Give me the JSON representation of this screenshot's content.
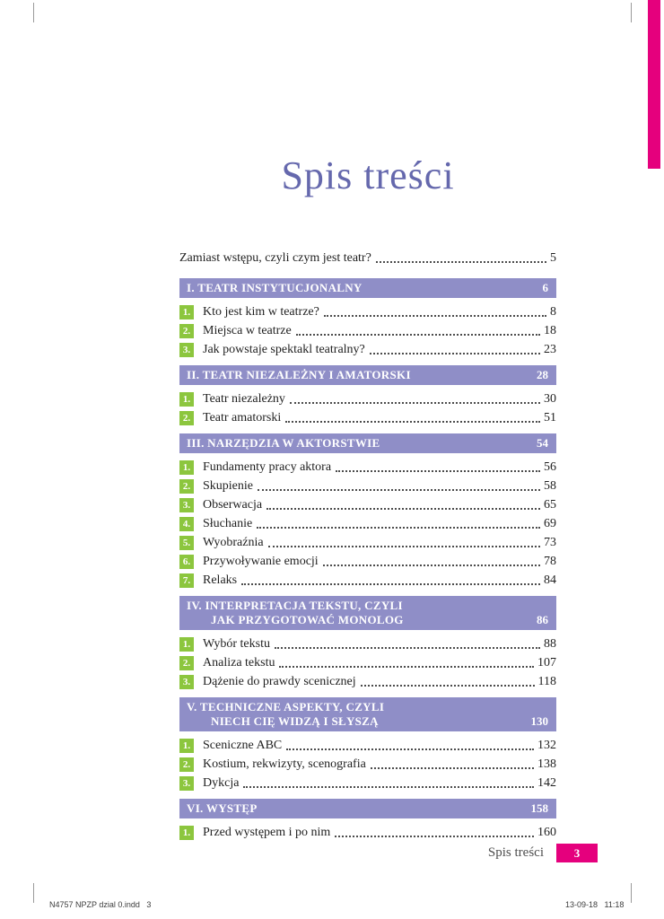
{
  "title": "Spis treści",
  "intro": {
    "label": "Zamiast wstępu, czyli czym jest teatr?",
    "page": "5"
  },
  "sections": [
    {
      "heading": [
        "I. TEATR INSTYTUCJONALNY"
      ],
      "page": "6",
      "items": [
        {
          "num": "1.",
          "label": "Kto jest kim w teatrze?",
          "page": "8"
        },
        {
          "num": "2.",
          "label": "Miejsca w teatrze",
          "page": "18"
        },
        {
          "num": "3.",
          "label": "Jak powstaje spektakl teatralny?",
          "page": "23"
        }
      ]
    },
    {
      "heading": [
        "II. TEATR NIEZALEŻNY I AMATORSKI"
      ],
      "page": "28",
      "items": [
        {
          "num": "1.",
          "label": "Teatr niezależny",
          "page": "30"
        },
        {
          "num": "2.",
          "label": "Teatr amatorski",
          "page": "51"
        }
      ]
    },
    {
      "heading": [
        "III. NARZĘDZIA W AKTORSTWIE"
      ],
      "page": "54",
      "items": [
        {
          "num": "1.",
          "label": "Fundamenty pracy aktora",
          "page": "56"
        },
        {
          "num": "2.",
          "label": "Skupienie",
          "page": "58"
        },
        {
          "num": "3.",
          "label": "Obserwacja",
          "page": "65"
        },
        {
          "num": "4.",
          "label": "Słuchanie",
          "page": "69"
        },
        {
          "num": "5.",
          "label": "Wyobraźnia",
          "page": "73"
        },
        {
          "num": "6.",
          "label": "Przywoływanie emocji",
          "page": "78"
        },
        {
          "num": "7.",
          "label": "Relaks",
          "page": "84"
        }
      ]
    },
    {
      "heading": [
        "IV. INTERPRETACJA TEKSTU, CZYLI",
        "JAK PRZYGOTOWAĆ MONOLOG"
      ],
      "page": "86",
      "items": [
        {
          "num": "1.",
          "label": "Wybór tekstu",
          "page": "88"
        },
        {
          "num": "2.",
          "label": "Analiza tekstu",
          "page": "107"
        },
        {
          "num": "3.",
          "label": "Dążenie do prawdy scenicznej",
          "page": "118"
        }
      ]
    },
    {
      "heading": [
        "V. TECHNICZNE ASPEKTY, CZYLI",
        "NIECH CIĘ WIDZĄ I SŁYSZĄ"
      ],
      "page": "130",
      "items": [
        {
          "num": "1.",
          "label": "Sceniczne ABC",
          "page": "132"
        },
        {
          "num": "2.",
          "label": "Kostium, rekwizyty, scenografia",
          "page": "138"
        },
        {
          "num": "3.",
          "label": "Dykcja",
          "page": "142"
        }
      ]
    },
    {
      "heading": [
        "VI. WYSTĘP"
      ],
      "page": "158",
      "items": [
        {
          "num": "1.",
          "label": "Przed występem i po nim",
          "page": "160"
        }
      ]
    }
  ],
  "footer": {
    "label": "Spis treści",
    "page_number": "3"
  },
  "print_marks": {
    "left": "N4757 NPZP dzial 0.indd   3",
    "right": "13-09-18   11:18"
  },
  "colors": {
    "accent_purple": "#8f8ec7",
    "accent_green": "#8cc63e",
    "accent_pink": "#e5007d",
    "title_purple": "#6568ad"
  }
}
